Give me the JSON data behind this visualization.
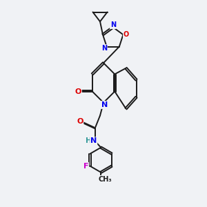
{
  "background_color": "#f0f2f5",
  "bond_color": "#1a1a1a",
  "atom_colors": {
    "N": "#0000ee",
    "O": "#dd0000",
    "F": "#cc00cc",
    "H": "#339999",
    "C": "#1a1a1a"
  }
}
